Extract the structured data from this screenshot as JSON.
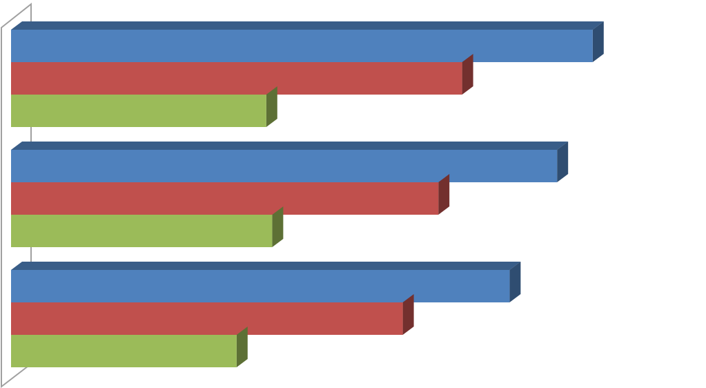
{
  "chart_data": {
    "type": "bar",
    "orientation": "horizontal",
    "three_d": true,
    "title": "",
    "xlabel": "",
    "ylabel": "",
    "categories": [
      "",
      "",
      ""
    ],
    "xlim": [
      0,
      100
    ],
    "grid": false,
    "legend": "none",
    "series": [
      {
        "values": [
          98,
          92,
          84
        ],
        "color": "#4f81bd"
      },
      {
        "values": [
          76,
          72,
          66
        ],
        "color": "#c0504d"
      },
      {
        "values": [
          43,
          44,
          38
        ],
        "color": "#9bbb59"
      }
    ]
  }
}
